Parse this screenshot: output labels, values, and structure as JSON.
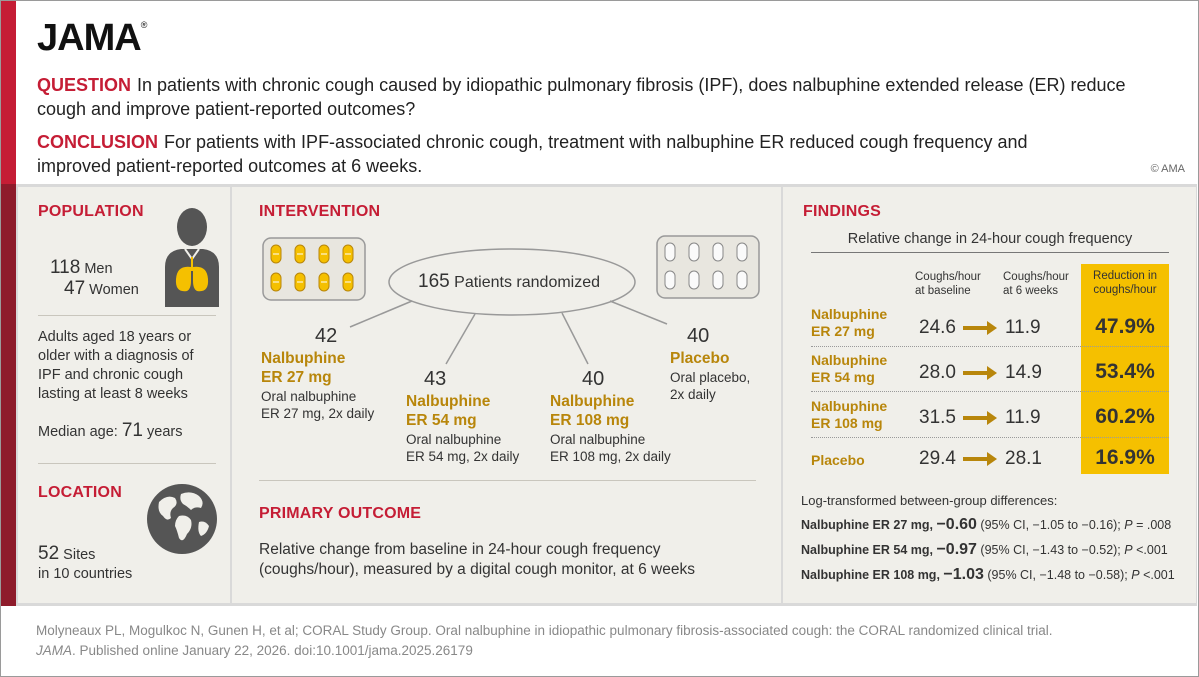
{
  "header": {
    "logo": "JAMA",
    "question_label": "QUESTION",
    "question_text": "In patients with chronic cough caused by idiopathic pulmonary fibrosis (IPF), does nalbuphine extended release (ER) reduce cough and improve patient-reported outcomes?",
    "conclusion_label": "CONCLUSION",
    "conclusion_text": "For patients with IPF-associated chronic cough, treatment with nalbuphine ER reduced cough frequency and improved patient-reported outcomes at 6 weeks.",
    "copyright": "© AMA"
  },
  "population": {
    "title": "POPULATION",
    "men_count": "118",
    "men_label": "Men",
    "women_count": "47",
    "women_label": "Women",
    "description": "Adults aged 18 years or older with a diagnosis of IPF and chronic cough lasting at least 8 weeks",
    "median_label": "Median age:",
    "median_value": "71",
    "median_unit": "years"
  },
  "location": {
    "title": "LOCATION",
    "sites_count": "52",
    "sites_label": "Sites",
    "countries": "in 10 countries"
  },
  "intervention": {
    "title": "INTERVENTION",
    "randomized_count": "165",
    "randomized_label": "Patients randomized",
    "arms": [
      {
        "n": "42",
        "name1": "Nalbuphine",
        "name2": "ER 27 mg",
        "desc1": "Oral nalbuphine",
        "desc2": "ER 27 mg, 2x daily"
      },
      {
        "n": "43",
        "name1": "Nalbuphine",
        "name2": "ER 54 mg",
        "desc1": "Oral nalbuphine",
        "desc2": "ER 54 mg, 2x daily"
      },
      {
        "n": "40",
        "name1": "Nalbuphine",
        "name2": "ER 108 mg",
        "desc1": "Oral nalbuphine",
        "desc2": "ER 108 mg, 2x daily"
      },
      {
        "n": "40",
        "name1": "Placebo",
        "name2": "",
        "desc1": "Oral placebo,",
        "desc2": "2x daily"
      }
    ]
  },
  "primary_outcome": {
    "title": "PRIMARY OUTCOME",
    "line1": "Relative change from baseline in 24-hour cough frequency",
    "line2": "(coughs/hour), measured by a digital cough monitor, at 6 weeks"
  },
  "findings": {
    "title": "FINDINGS",
    "subtitle": "Relative change in 24-hour cough frequency",
    "col_baseline": [
      "Coughs/hour",
      "at baseline"
    ],
    "col_6wk": [
      "Coughs/hour",
      "at 6 weeks"
    ],
    "col_reduction": [
      "Reduction in",
      "coughs/hour"
    ],
    "rows": [
      {
        "label1": "Nalbuphine",
        "label2": "ER 27 mg",
        "baseline": "24.6",
        "week6": "11.9",
        "reduction": "47.9%"
      },
      {
        "label1": "Nalbuphine",
        "label2": "ER 54 mg",
        "baseline": "28.0",
        "week6": "14.9",
        "reduction": "53.4%"
      },
      {
        "label1": "Nalbuphine",
        "label2": "ER 108 mg",
        "baseline": "31.5",
        "week6": "11.9",
        "reduction": "60.2%"
      },
      {
        "label1": "Placebo",
        "label2": "",
        "baseline": "29.4",
        "week6": "28.1",
        "reduction": "16.9%"
      }
    ],
    "log_title": "Log-transformed between-group differences:",
    "log_rows": [
      {
        "arm": "Nalbuphine ER 27 mg,",
        "value": "−0.60",
        "ci": "(95% CI, −1.05 to −0.16);",
        "p_label": "P",
        "p_value": "= .008"
      },
      {
        "arm": "Nalbuphine ER 54 mg,",
        "value": "−0.97",
        "ci": "(95% CI, −1.43 to −0.52);",
        "p_label": "P",
        "p_value": "<.001"
      },
      {
        "arm": "Nalbuphine ER 108 mg,",
        "value": "−1.03",
        "ci": "(95% CI, −1.48 to −0.58);",
        "p_label": "P",
        "p_value": "<.001"
      }
    ]
  },
  "footer": {
    "line1": "Molyneaux PL, Mogulkoc N, Gunen H, et al; CORAL Study Group. Oral nalbuphine in idiopathic pulmonary fibrosis-associated cough: the CORAL randomized clinical trial.",
    "journal": "JAMA",
    "line2": ". Published online January 22, 2026. doi:10.1001/jama.2025.26179"
  },
  "colors": {
    "brand_red": "#c51d35",
    "dark_red": "#8e1b2b",
    "gold": "#b8860b",
    "highlight": "#f5c000",
    "panel_bg": "#f0efea"
  },
  "icons": [
    "person-lungs-icon",
    "globe-icon",
    "pill-blister-icon",
    "arrow-right-icon"
  ]
}
